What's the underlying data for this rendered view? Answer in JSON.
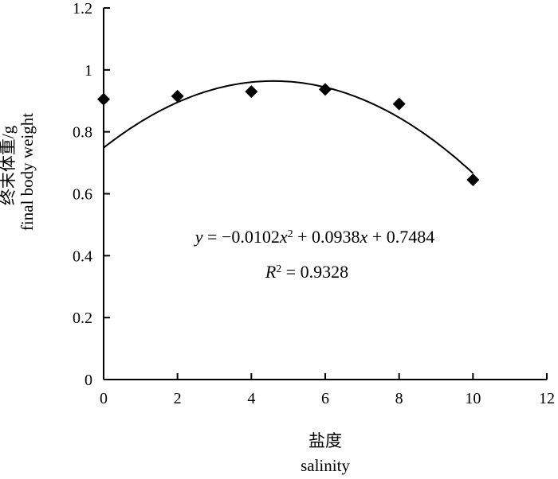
{
  "chart_data": {
    "type": "scatter",
    "x": [
      0,
      2,
      4,
      6,
      8,
      10
    ],
    "y": [
      0.905,
      0.915,
      0.93,
      0.937,
      0.89,
      0.645
    ],
    "xlim": [
      0,
      12
    ],
    "ylim": [
      0,
      1.2
    ],
    "x_ticks": [
      "0",
      "2",
      "4",
      "6",
      "8",
      "10",
      "12"
    ],
    "y_ticks": [
      "0",
      "0.2",
      "0.4",
      "0.6",
      "0.8",
      "1",
      "1.2"
    ],
    "xlabel_zh": "盐度",
    "xlabel_en": "salinity",
    "ylabel_zh": "终末体重/g",
    "ylabel_en": "final body weight",
    "marker": "diamond",
    "grid": false,
    "trendline": {
      "type": "polynomial",
      "a": -0.0102,
      "b": 0.0938,
      "c": 0.7484,
      "x_range": [
        0,
        10
      ]
    },
    "annotations": {
      "equation": {
        "y_var": "y",
        "eq_a": " = −0.0102",
        "x1": "x",
        "sup2": "2",
        "eq_b": " + 0.0938",
        "x2": "x",
        "eq_c": " + 0.7484"
      },
      "r2": {
        "R": "R",
        "sup": "2",
        "value": " = 0.9328"
      }
    },
    "colors": {
      "ink": "#000000",
      "background": "#ffffff"
    }
  }
}
